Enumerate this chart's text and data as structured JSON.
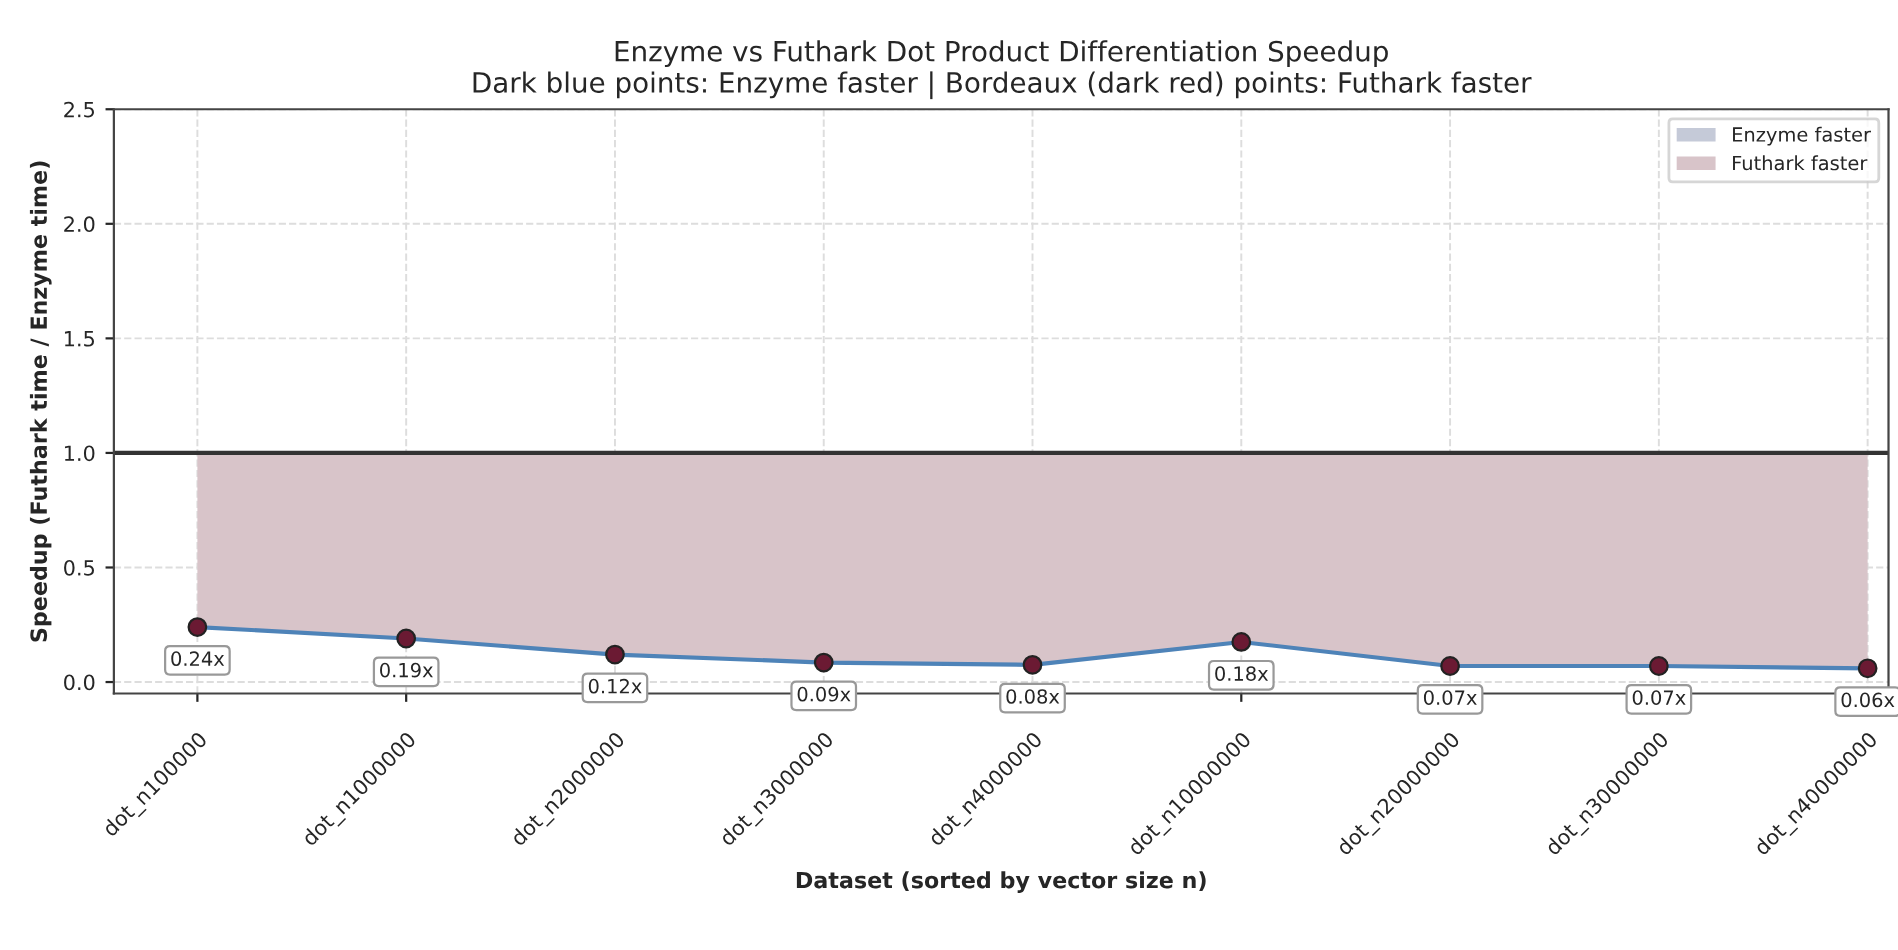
{
  "chart_data": {
    "type": "line",
    "title": "Enzyme vs Futhark Dot Product Differentiation Speedup",
    "subtitle": "Dark blue points: Enzyme faster | Bordeaux (dark red) points: Futhark faster",
    "xlabel": "Dataset (sorted by vector size n)",
    "ylabel": "Speedup (Futhark time / Enzyme time)",
    "categories": [
      "dot_n100000",
      "dot_n1000000",
      "dot_n2000000",
      "dot_n3000000",
      "dot_n4000000",
      "dot_n10000000",
      "dot_n20000000",
      "dot_n30000000",
      "dot_n40000000"
    ],
    "series": [
      {
        "type": "area",
        "name": "Enzyme faster",
        "color": "#c5cad8",
        "values": [
          null,
          null,
          null,
          null,
          null,
          null,
          null,
          null,
          null
        ]
      },
      {
        "type": "area",
        "name": "Futhark faster",
        "color": "#d8c4c9",
        "values": [
          1.0,
          1.0,
          1.0,
          1.0,
          1.0,
          1.0,
          1.0,
          1.0,
          1.0
        ]
      },
      {
        "color": "#4e83b8",
        "colors": [
          "#6b1a33",
          "#6b1a33",
          "#6b1a33",
          "#6b1a33",
          "#6b1a33",
          "#6b1a33",
          "#6b1a33",
          "#6b1a33",
          "#6b1a33"
        ],
        "marker": "circle",
        "values": [
          0.24,
          0.19,
          0.12,
          0.085,
          0.075,
          0.175,
          0.07,
          0.07,
          0.06
        ],
        "value_labels": [
          "0.24x",
          "0.19x",
          "0.12x",
          "0.09x",
          "0.08x",
          "0.18x",
          "0.07x",
          "0.07x",
          "0.06x"
        ]
      }
    ],
    "ylim": [
      -0.05,
      2.5
    ],
    "yticks": [
      {
        "value": 0,
        "label": "0.0"
      },
      {
        "value": 0.5,
        "label": "0.5"
      },
      {
        "value": 1,
        "label": "1.0"
      },
      {
        "value": 1.5,
        "label": "1.5"
      },
      {
        "value": 2,
        "label": "2.0"
      },
      {
        "value": 2.5,
        "label": "2.5"
      }
    ],
    "ref_lines": [
      {
        "axis": "y",
        "value": 1,
        "color": "#333333",
        "line_style": "solid"
      }
    ],
    "grid": true,
    "legend": "top right",
    "line_style": "solid"
  }
}
